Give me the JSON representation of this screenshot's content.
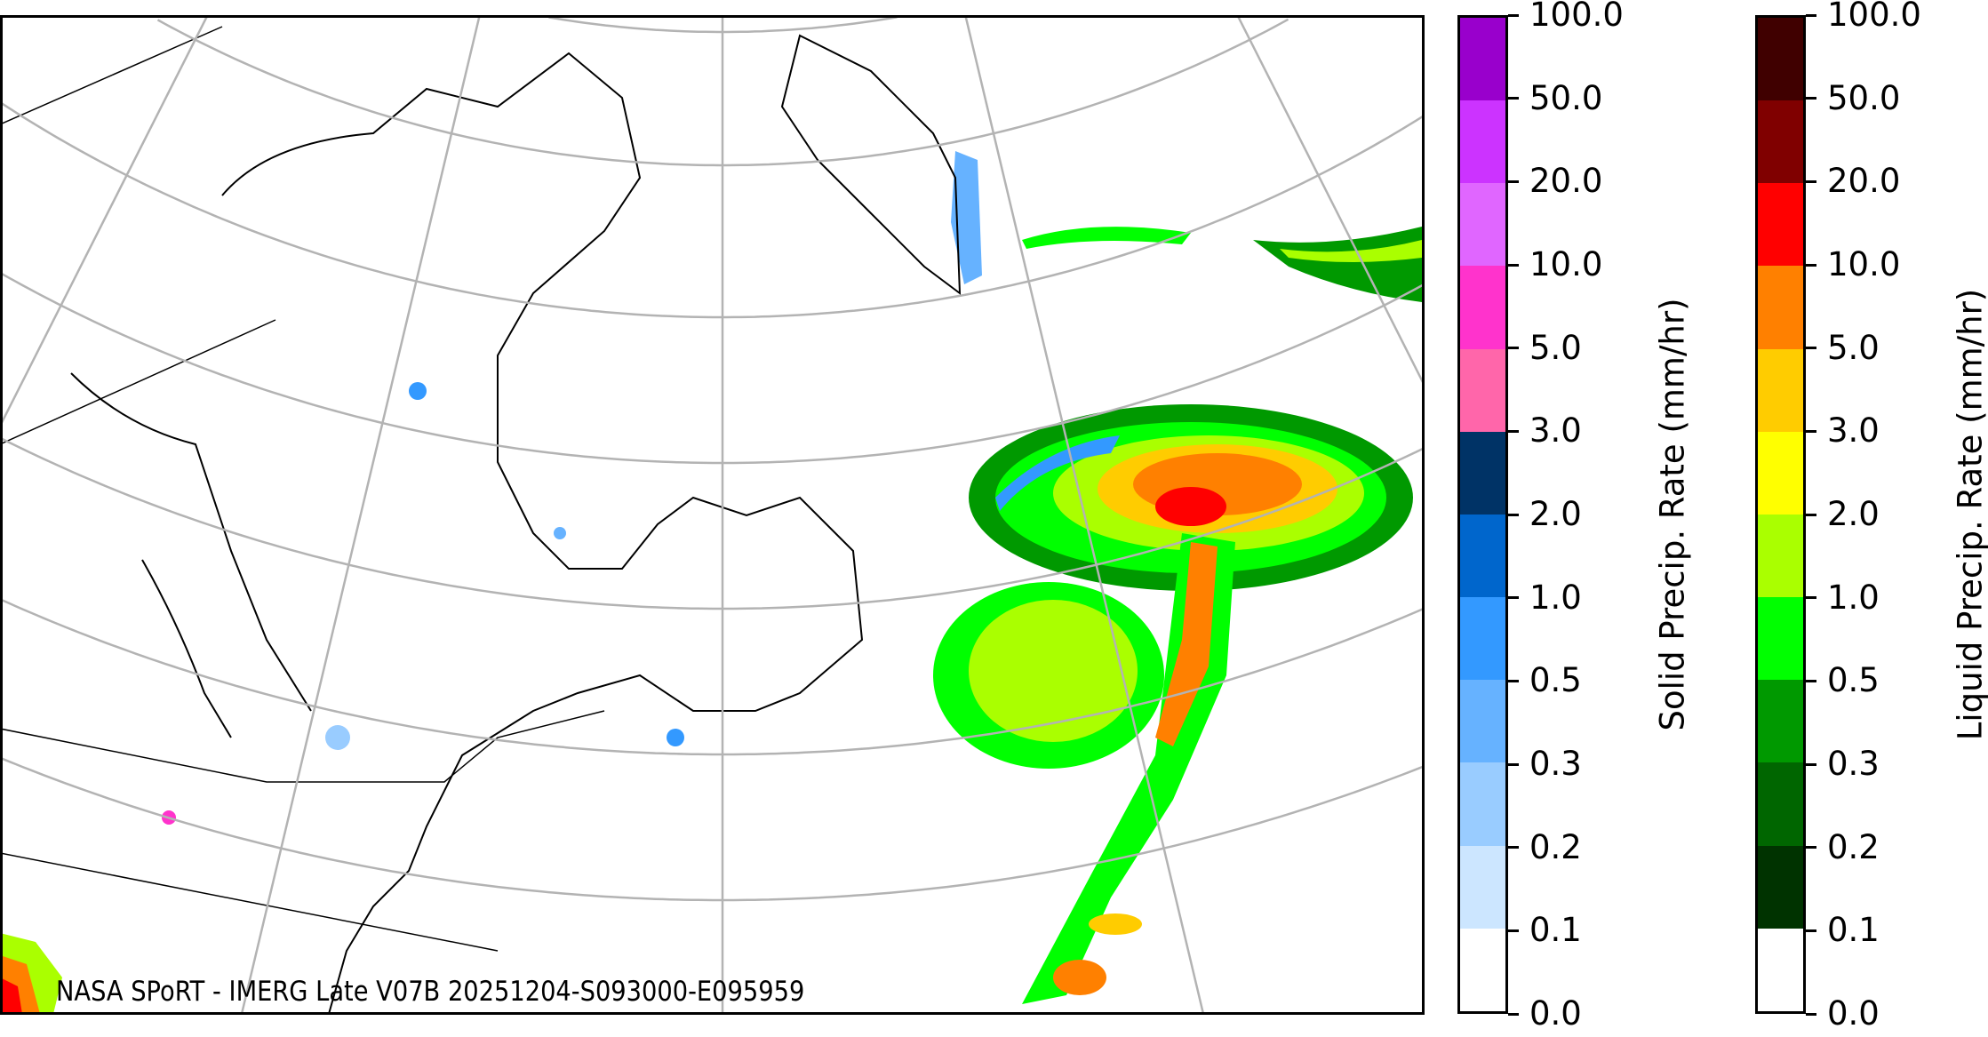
{
  "caption": "NASA SPoRT - IMERG Late V07B 20251204-S093000-E095959",
  "colorbars": [
    {
      "label": "Solid Precip. Rate (mm/hr)",
      "ticks": [
        "0.0",
        "0.1",
        "0.2",
        "0.3",
        "0.5",
        "1.0",
        "2.0",
        "3.0",
        "5.0",
        "10.0",
        "20.0",
        "50.0",
        "100.0"
      ],
      "colors": [
        "#ffffff",
        "#cce6ff",
        "#99ccff",
        "#66b2ff",
        "#3399ff",
        "#0066cc",
        "#003366",
        "#ff66aa",
        "#ff33cc",
        "#e066ff",
        "#cc33ff",
        "#9900cc"
      ]
    },
    {
      "label": "Liquid Precip. Rate (mm/hr)",
      "ticks": [
        "0.0",
        "0.1",
        "0.2",
        "0.3",
        "0.5",
        "1.0",
        "2.0",
        "3.0",
        "5.0",
        "10.0",
        "20.0",
        "50.0",
        "100.0"
      ],
      "colors": [
        "#ffffff",
        "#003300",
        "#006600",
        "#009900",
        "#00ff00",
        "#aaff00",
        "#ffff00",
        "#ffcc00",
        "#ff8000",
        "#ff0000",
        "#800000",
        "#400000"
      ]
    }
  ],
  "map": {
    "graticule_color": "#b3b3b3",
    "coastline_color": "#000000"
  }
}
